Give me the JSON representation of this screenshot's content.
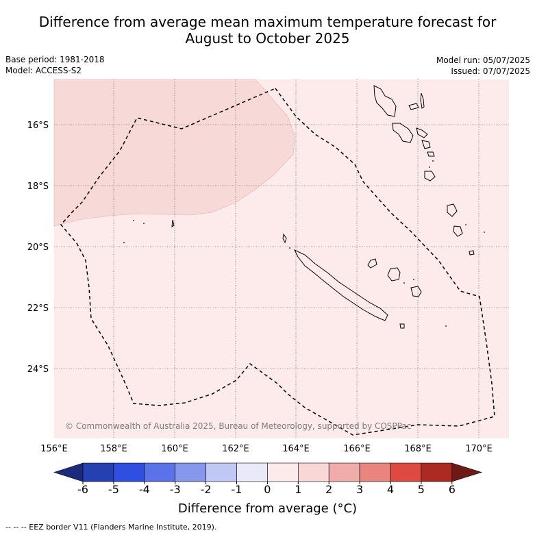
{
  "title_line1": "Difference from average mean maximum temperature forecast for",
  "title_line2": "August to October 2025",
  "base_period": "Base period: 1981-2018",
  "model": "Model: ACCESS-S2",
  "model_run": "Model run: 05/07/2025",
  "issued": "Issued: 07/07/2025",
  "copyright": "© Commonwealth of Australia 2025, Bureau of Meteorology, supported by COSPPac",
  "longitude_labels": [
    "156°E",
    "158°E",
    "160°E",
    "162°E",
    "164°E",
    "166°E",
    "168°E",
    "170°E"
  ],
  "latitude_labels": [
    "16°S",
    "18°S",
    "20°S",
    "22°S",
    "24°S"
  ],
  "colorbar": {
    "title": "Difference from average (°C)",
    "ticks": [
      "-6",
      "-5",
      "-4",
      "-3",
      "-2",
      "-1",
      "0",
      "1",
      "2",
      "3",
      "4",
      "5",
      "6"
    ],
    "colors": [
      "#1c2a7a",
      "#2540b0",
      "#2f4fe0",
      "#5b73e8",
      "#8598ec",
      "#c0c8f5",
      "#e8eafa",
      "#fcebea",
      "#f8d8d6",
      "#f0aca8",
      "#e8857e",
      "#dd4a3f",
      "#ad2a22",
      "#6e1a14"
    ]
  },
  "map_shading": {
    "region_value_range": "1 to 2",
    "background_value_range": "0 to 1",
    "region_color": "#f7d9d7",
    "background_color": "#fcebea"
  },
  "footnote": "--  --  -- EEZ border V11 (Flanders Marine Institute, 2019)."
}
